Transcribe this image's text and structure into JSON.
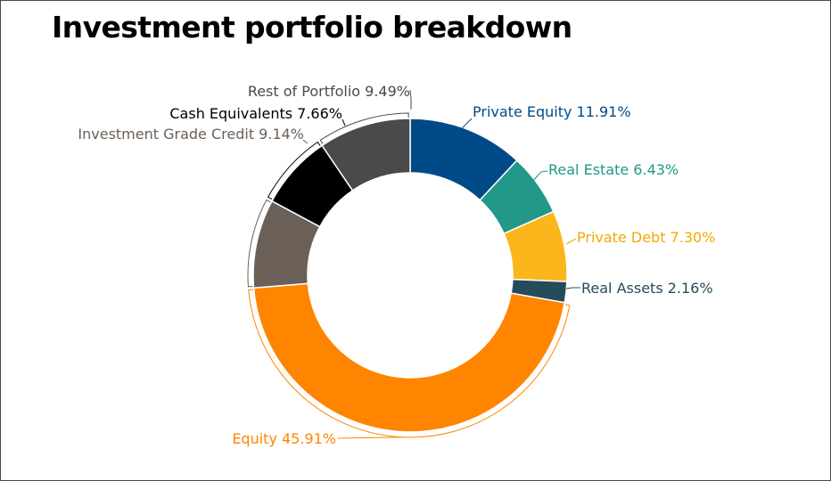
{
  "colors": {
    "background": "#ffffff",
    "border": "#4a4a4a",
    "title": "#000000"
  },
  "chart_data": {
    "type": "pie",
    "variant": "donut",
    "title": "Investment portfolio breakdown",
    "start_angle_deg": 0,
    "direction": "clockwise",
    "slices": [
      {
        "label": "Private Equity",
        "value": 11.91,
        "display": "Private Equity 11.91%",
        "color": "#004b87",
        "label_color": "#004b87"
      },
      {
        "label": "Real Estate",
        "value": 6.43,
        "display": "Real Estate 6.43%",
        "color": "#21988a",
        "label_color": "#21988a"
      },
      {
        "label": "Private Debt",
        "value": 7.3,
        "display": "Private Debt 7.30%",
        "color": "#fbb61b",
        "label_color": "#f5a800"
      },
      {
        "label": "Real Assets",
        "value": 2.16,
        "display": "Real Assets 2.16%",
        "color": "#244c5a",
        "label_color": "#244c5a"
      },
      {
        "label": "Equity",
        "value": 45.91,
        "display": "Equity 45.91%",
        "color": "#ff8500",
        "label_color": "#ff8500"
      },
      {
        "label": "Investment Grade Credit",
        "value": 9.14,
        "display": "Investment Grade Credit 9.14%",
        "color": "#6b6057",
        "label_color": "#6b6057"
      },
      {
        "label": "Cash Equivalents",
        "value": 7.66,
        "display": "Cash Equivalents 7.66%",
        "color": "#000000",
        "label_color": "#000000"
      },
      {
        "label": "Rest of Portfolio",
        "value": 9.49,
        "display": "Rest of Portfolio 9.49%",
        "color": "#4a4a4a",
        "label_color": "#4a4a4a"
      }
    ]
  }
}
